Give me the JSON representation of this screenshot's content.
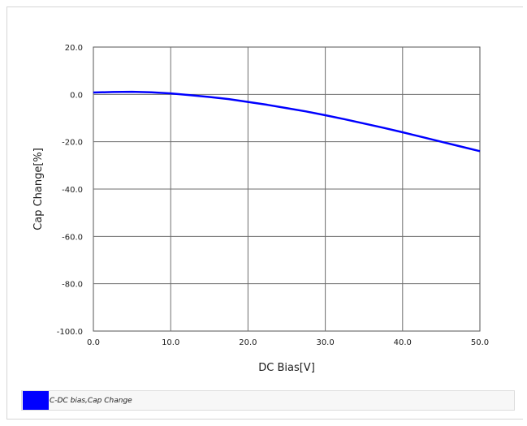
{
  "chart_data": {
    "type": "line",
    "xlabel": "DC Bias[V]",
    "ylabel": "Cap Change[%]",
    "xlim": [
      0,
      50
    ],
    "ylim": [
      -100,
      20
    ],
    "x_ticks": [
      "0.0",
      "10.0",
      "20.0",
      "30.0",
      "40.0",
      "50.0"
    ],
    "y_ticks": [
      "20.0",
      "0.0",
      "-20.0",
      "-40.0",
      "-60.0",
      "-80.0",
      "-100.0"
    ],
    "grid": true,
    "legend_position": "bottom",
    "series": [
      {
        "name": "C-DC bias,Cap Change",
        "color": "#0000ff",
        "x": [
          0,
          2.5,
          5,
          7.5,
          10,
          12.5,
          15,
          17.5,
          20,
          22.5,
          25,
          27.5,
          30,
          32.5,
          35,
          37.5,
          40,
          42.5,
          45,
          47.5,
          50
        ],
        "y": [
          0.8,
          1.0,
          1.1,
          0.9,
          0.4,
          -0.3,
          -1.1,
          -2.0,
          -3.2,
          -4.4,
          -5.8,
          -7.2,
          -8.8,
          -10.5,
          -12.3,
          -14.1,
          -16.0,
          -18.0,
          -20.0,
          -22.0,
          -24.0
        ]
      }
    ]
  }
}
